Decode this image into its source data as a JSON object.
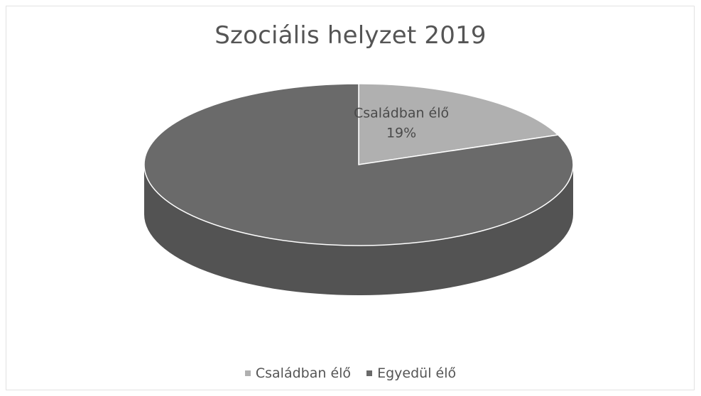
{
  "chart_data": {
    "type": "pie",
    "title": "Szociális helyzet 2019",
    "categories": [
      "Családban élő",
      "Egyedül élő"
    ],
    "values": [
      19,
      81
    ],
    "colors": [
      "#b0b0b0",
      "#6a6a6a"
    ],
    "data_labels": [
      {
        "category": "Családban élő",
        "text": "19%"
      }
    ],
    "legend": "bottom"
  }
}
